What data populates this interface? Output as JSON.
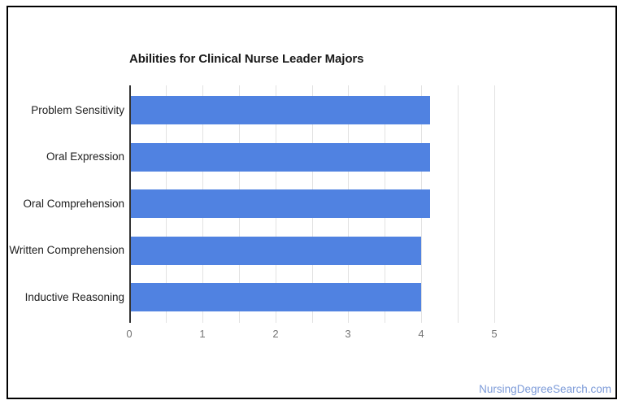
{
  "page": {
    "watermark": "NursingDegreeSearch.com",
    "watermark_color": "#7e9cd9",
    "background_color": "#ffffff",
    "frame_color": "#000000"
  },
  "chart_data": {
    "type": "bar",
    "orientation": "horizontal",
    "title": "Abilities for Clinical Nurse Leader Majors",
    "categories": [
      "Problem Sensitivity",
      "Oral Expression",
      "Oral Comprehension",
      "Written Comprehension",
      "Inductive Reasoning"
    ],
    "values": [
      4.12,
      4.12,
      4.12,
      4.0,
      4.0
    ],
    "xlabel": "",
    "ylabel": "",
    "xlim": [
      0,
      5
    ],
    "x_ticks": [
      0,
      1,
      2,
      3,
      4,
      5
    ],
    "gridline_step": 0.5,
    "grid_on": true,
    "legend_position": "none",
    "bar_color": "#5082e1",
    "gridline_color": "#e2e2e2",
    "axis_line_color": "#333333",
    "title_color": "#1a1a1a",
    "category_label_color": "#202020",
    "tick_label_color": "#757575"
  }
}
